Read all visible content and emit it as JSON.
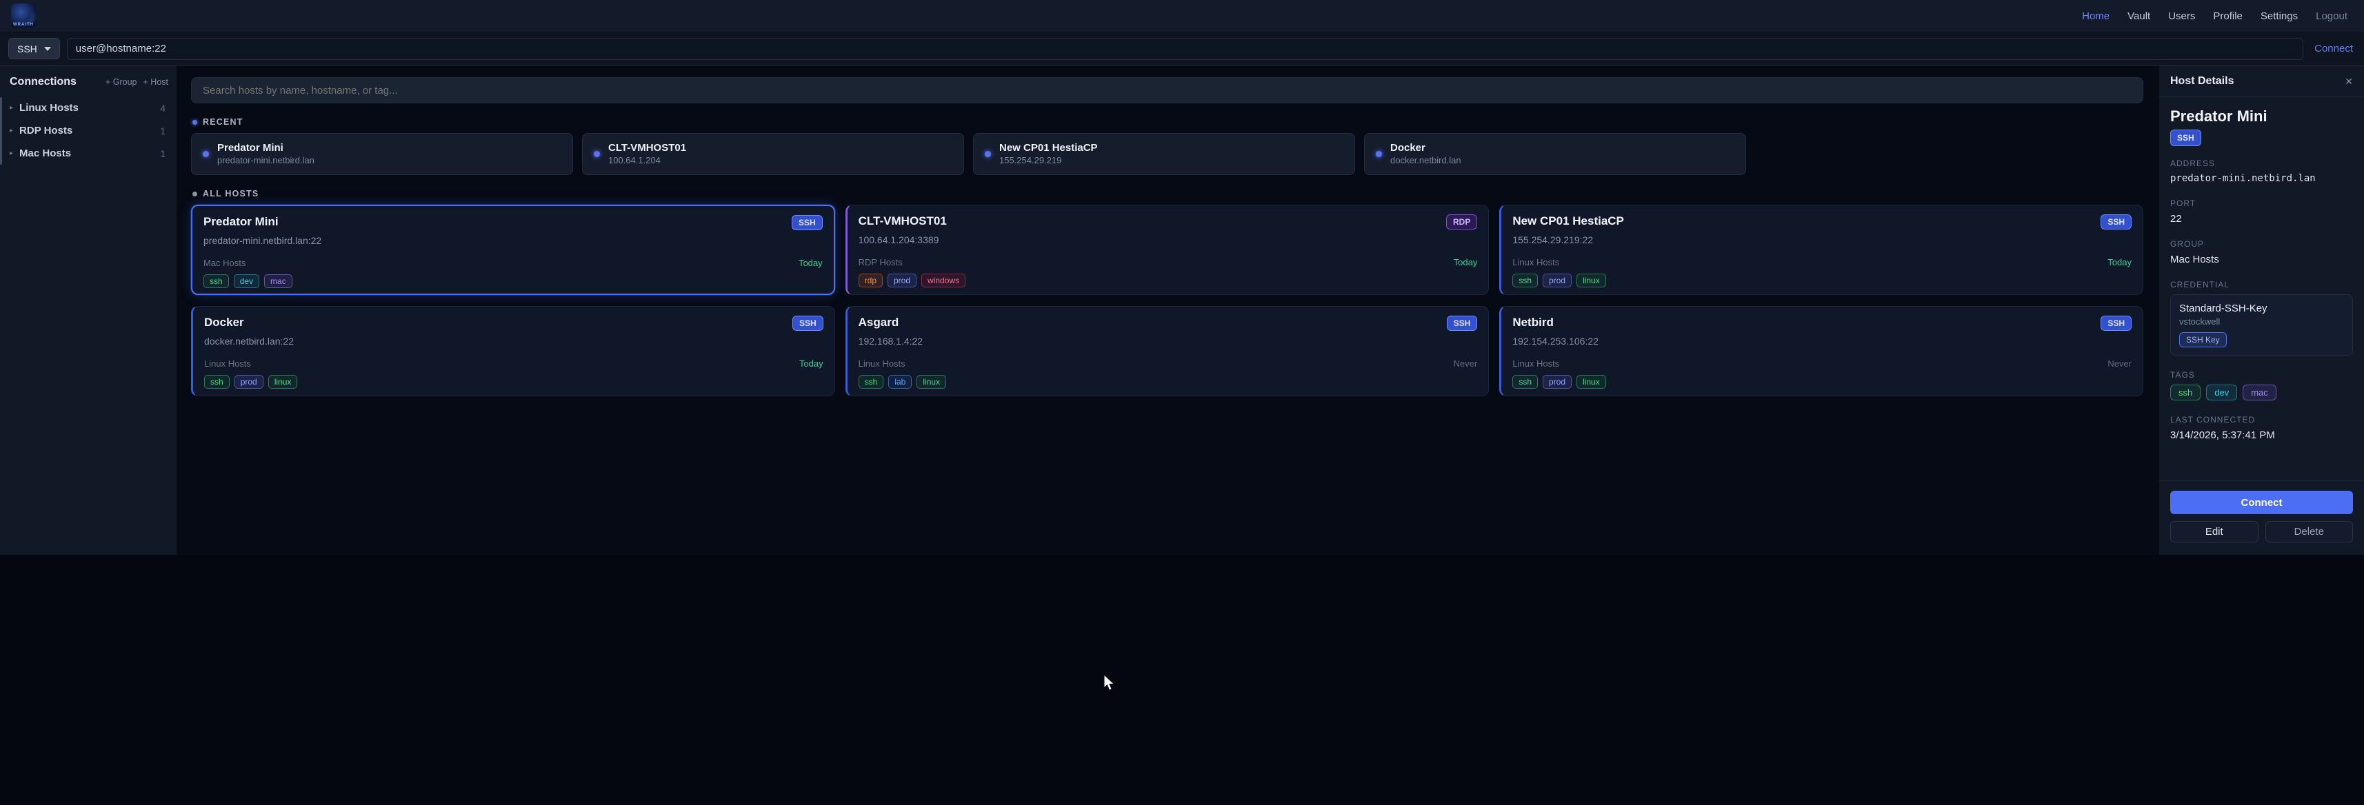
{
  "brand": {
    "logo_text": "WRAITH"
  },
  "topnav": {
    "items": [
      {
        "label": "Home",
        "active": true
      },
      {
        "label": "Vault"
      },
      {
        "label": "Users"
      },
      {
        "label": "Profile"
      },
      {
        "label": "Settings"
      },
      {
        "label": "Logout",
        "dim": true
      }
    ]
  },
  "connection_bar": {
    "protocol": "SSH",
    "input_value": "user@hostname:22",
    "connect_label": "Connect"
  },
  "sidebar": {
    "title": "Connections",
    "add_group_label": "+ Group",
    "add_host_label": "+ Host",
    "groups": [
      {
        "name": "Linux Hosts",
        "count": 4
      },
      {
        "name": "RDP Hosts",
        "count": 1
      },
      {
        "name": "Mac Hosts",
        "count": 1
      }
    ]
  },
  "search": {
    "placeholder": "Search hosts by name, hostname, or tag..."
  },
  "sections": {
    "recent_label": "RECENT",
    "all_hosts_label": "ALL HOSTS"
  },
  "recent": [
    {
      "name": "Predator Mini",
      "hostname": "predator-mini.netbird.lan"
    },
    {
      "name": "CLT-VMHOST01",
      "hostname": "100.64.1.204"
    },
    {
      "name": "New CP01 HestiaCP",
      "hostname": "155.254.29.219"
    },
    {
      "name": "Docker",
      "hostname": "docker.netbird.lan"
    }
  ],
  "hosts": [
    {
      "name": "Predator Mini",
      "address": "predator-mini.netbird.lan:22",
      "group": "Mac Hosts",
      "last": "Today",
      "last_type": "today",
      "protocol": "SSH",
      "protocol_color": "blue",
      "selected": true,
      "tags": [
        {
          "label": "ssh",
          "color": "green"
        },
        {
          "label": "dev",
          "color": "cyan"
        },
        {
          "label": "mac",
          "color": "purple"
        }
      ]
    },
    {
      "name": "CLT-VMHOST01",
      "address": "100.64.1.204:3389",
      "group": "RDP Hosts",
      "last": "Today",
      "last_type": "today",
      "protocol": "RDP",
      "protocol_color": "purple",
      "tags": [
        {
          "label": "rdp",
          "color": "orange"
        },
        {
          "label": "prod",
          "color": "indigo"
        },
        {
          "label": "windows",
          "color": "red"
        }
      ]
    },
    {
      "name": "New CP01 HestiaCP",
      "address": "155.254.29.219:22",
      "group": "Linux Hosts",
      "last": "Today",
      "last_type": "today",
      "protocol": "SSH",
      "protocol_color": "blue",
      "tags": [
        {
          "label": "ssh",
          "color": "green"
        },
        {
          "label": "prod",
          "color": "indigo"
        },
        {
          "label": "linux",
          "color": "green"
        }
      ]
    },
    {
      "name": "Docker",
      "address": "docker.netbird.lan:22",
      "group": "Linux Hosts",
      "last": "Today",
      "last_type": "today",
      "protocol": "SSH",
      "protocol_color": "blue",
      "tags": [
        {
          "label": "ssh",
          "color": "green"
        },
        {
          "label": "prod",
          "color": "indigo"
        },
        {
          "label": "linux",
          "color": "green"
        }
      ]
    },
    {
      "name": "Asgard",
      "address": "192.168.1.4:22",
      "group": "Linux Hosts",
      "last": "Never",
      "last_type": "never",
      "protocol": "SSH",
      "protocol_color": "blue",
      "tags": [
        {
          "label": "ssh",
          "color": "green"
        },
        {
          "label": "lab",
          "color": "blue"
        },
        {
          "label": "linux",
          "color": "green"
        }
      ]
    },
    {
      "name": "Netbird",
      "address": "192.154.253.106:22",
      "group": "Linux Hosts",
      "last": "Never",
      "last_type": "never",
      "protocol": "SSH",
      "protocol_color": "blue",
      "tags": [
        {
          "label": "ssh",
          "color": "green"
        },
        {
          "label": "prod",
          "color": "indigo"
        },
        {
          "label": "linux",
          "color": "green"
        }
      ]
    }
  ],
  "details": {
    "panel_title": "Host Details",
    "close_glyph": "✕",
    "host_name": "Predator Mini",
    "protocol": "SSH",
    "labels": {
      "address": "ADDRESS",
      "port": "PORT",
      "group": "GROUP",
      "credential": "CREDENTIAL",
      "tags": "TAGS",
      "last_connected": "LAST CONNECTED"
    },
    "address": "predator-mini.netbird.lan",
    "port": "22",
    "group": "Mac Hosts",
    "credential": {
      "name": "Standard-SSH-Key",
      "user": "vstockwell",
      "type": "SSH Key"
    },
    "tags": [
      {
        "label": "ssh",
        "color": "green"
      },
      {
        "label": "dev",
        "color": "cyan"
      },
      {
        "label": "mac",
        "color": "purple"
      }
    ],
    "last_connected": "3/14/2026, 5:37:41 PM",
    "connect_label": "Connect",
    "edit_label": "Edit",
    "delete_label": "Delete"
  },
  "colors": {
    "accent": "#4c6ef5",
    "success": "#34d399",
    "ssh_badge": "#3350cf",
    "rdp_badge": "#7a52e8"
  }
}
